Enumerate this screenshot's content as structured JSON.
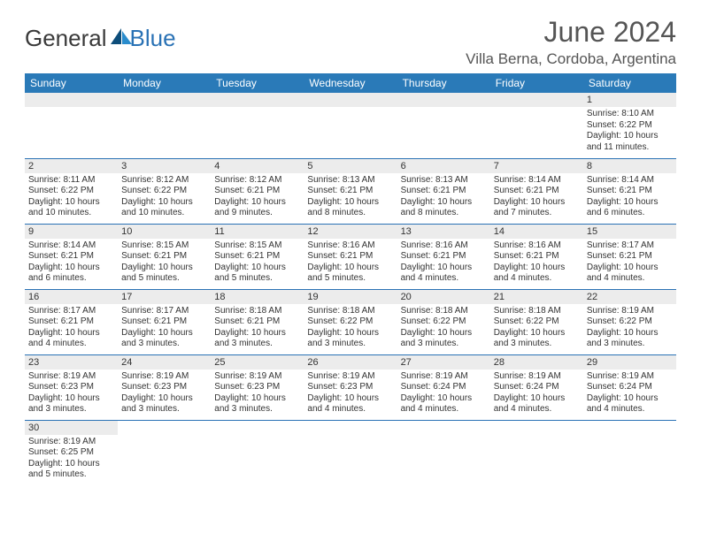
{
  "brand": {
    "general": "General",
    "blue": "Blue",
    "logo_color_dark": "#0d4d7a",
    "logo_color_light": "#2a8ccc"
  },
  "header": {
    "month_title": "June 2024",
    "location": "Villa Berna, Cordoba, Argentina"
  },
  "colors": {
    "header_bg": "#2a7ab8",
    "header_text": "#ffffff",
    "row_divider": "#2a72b5",
    "daynum_bg": "#ececec",
    "text": "#333333",
    "background": "#ffffff"
  },
  "daynames": [
    "Sunday",
    "Monday",
    "Tuesday",
    "Wednesday",
    "Thursday",
    "Friday",
    "Saturday"
  ],
  "weeks": [
    [
      {
        "empty": true
      },
      {
        "empty": true
      },
      {
        "empty": true
      },
      {
        "empty": true
      },
      {
        "empty": true
      },
      {
        "empty": true
      },
      {
        "day": "1",
        "sunrise": "Sunrise: 8:10 AM",
        "sunset": "Sunset: 6:22 PM",
        "daylight": "Daylight: 10 hours and 11 minutes."
      }
    ],
    [
      {
        "day": "2",
        "sunrise": "Sunrise: 8:11 AM",
        "sunset": "Sunset: 6:22 PM",
        "daylight": "Daylight: 10 hours and 10 minutes."
      },
      {
        "day": "3",
        "sunrise": "Sunrise: 8:12 AM",
        "sunset": "Sunset: 6:22 PM",
        "daylight": "Daylight: 10 hours and 10 minutes."
      },
      {
        "day": "4",
        "sunrise": "Sunrise: 8:12 AM",
        "sunset": "Sunset: 6:21 PM",
        "daylight": "Daylight: 10 hours and 9 minutes."
      },
      {
        "day": "5",
        "sunrise": "Sunrise: 8:13 AM",
        "sunset": "Sunset: 6:21 PM",
        "daylight": "Daylight: 10 hours and 8 minutes."
      },
      {
        "day": "6",
        "sunrise": "Sunrise: 8:13 AM",
        "sunset": "Sunset: 6:21 PM",
        "daylight": "Daylight: 10 hours and 8 minutes."
      },
      {
        "day": "7",
        "sunrise": "Sunrise: 8:14 AM",
        "sunset": "Sunset: 6:21 PM",
        "daylight": "Daylight: 10 hours and 7 minutes."
      },
      {
        "day": "8",
        "sunrise": "Sunrise: 8:14 AM",
        "sunset": "Sunset: 6:21 PM",
        "daylight": "Daylight: 10 hours and 6 minutes."
      }
    ],
    [
      {
        "day": "9",
        "sunrise": "Sunrise: 8:14 AM",
        "sunset": "Sunset: 6:21 PM",
        "daylight": "Daylight: 10 hours and 6 minutes."
      },
      {
        "day": "10",
        "sunrise": "Sunrise: 8:15 AM",
        "sunset": "Sunset: 6:21 PM",
        "daylight": "Daylight: 10 hours and 5 minutes."
      },
      {
        "day": "11",
        "sunrise": "Sunrise: 8:15 AM",
        "sunset": "Sunset: 6:21 PM",
        "daylight": "Daylight: 10 hours and 5 minutes."
      },
      {
        "day": "12",
        "sunrise": "Sunrise: 8:16 AM",
        "sunset": "Sunset: 6:21 PM",
        "daylight": "Daylight: 10 hours and 5 minutes."
      },
      {
        "day": "13",
        "sunrise": "Sunrise: 8:16 AM",
        "sunset": "Sunset: 6:21 PM",
        "daylight": "Daylight: 10 hours and 4 minutes."
      },
      {
        "day": "14",
        "sunrise": "Sunrise: 8:16 AM",
        "sunset": "Sunset: 6:21 PM",
        "daylight": "Daylight: 10 hours and 4 minutes."
      },
      {
        "day": "15",
        "sunrise": "Sunrise: 8:17 AM",
        "sunset": "Sunset: 6:21 PM",
        "daylight": "Daylight: 10 hours and 4 minutes."
      }
    ],
    [
      {
        "day": "16",
        "sunrise": "Sunrise: 8:17 AM",
        "sunset": "Sunset: 6:21 PM",
        "daylight": "Daylight: 10 hours and 4 minutes."
      },
      {
        "day": "17",
        "sunrise": "Sunrise: 8:17 AM",
        "sunset": "Sunset: 6:21 PM",
        "daylight": "Daylight: 10 hours and 3 minutes."
      },
      {
        "day": "18",
        "sunrise": "Sunrise: 8:18 AM",
        "sunset": "Sunset: 6:21 PM",
        "daylight": "Daylight: 10 hours and 3 minutes."
      },
      {
        "day": "19",
        "sunrise": "Sunrise: 8:18 AM",
        "sunset": "Sunset: 6:22 PM",
        "daylight": "Daylight: 10 hours and 3 minutes."
      },
      {
        "day": "20",
        "sunrise": "Sunrise: 8:18 AM",
        "sunset": "Sunset: 6:22 PM",
        "daylight": "Daylight: 10 hours and 3 minutes."
      },
      {
        "day": "21",
        "sunrise": "Sunrise: 8:18 AM",
        "sunset": "Sunset: 6:22 PM",
        "daylight": "Daylight: 10 hours and 3 minutes."
      },
      {
        "day": "22",
        "sunrise": "Sunrise: 8:19 AM",
        "sunset": "Sunset: 6:22 PM",
        "daylight": "Daylight: 10 hours and 3 minutes."
      }
    ],
    [
      {
        "day": "23",
        "sunrise": "Sunrise: 8:19 AM",
        "sunset": "Sunset: 6:23 PM",
        "daylight": "Daylight: 10 hours and 3 minutes."
      },
      {
        "day": "24",
        "sunrise": "Sunrise: 8:19 AM",
        "sunset": "Sunset: 6:23 PM",
        "daylight": "Daylight: 10 hours and 3 minutes."
      },
      {
        "day": "25",
        "sunrise": "Sunrise: 8:19 AM",
        "sunset": "Sunset: 6:23 PM",
        "daylight": "Daylight: 10 hours and 3 minutes."
      },
      {
        "day": "26",
        "sunrise": "Sunrise: 8:19 AM",
        "sunset": "Sunset: 6:23 PM",
        "daylight": "Daylight: 10 hours and 4 minutes."
      },
      {
        "day": "27",
        "sunrise": "Sunrise: 8:19 AM",
        "sunset": "Sunset: 6:24 PM",
        "daylight": "Daylight: 10 hours and 4 minutes."
      },
      {
        "day": "28",
        "sunrise": "Sunrise: 8:19 AM",
        "sunset": "Sunset: 6:24 PM",
        "daylight": "Daylight: 10 hours and 4 minutes."
      },
      {
        "day": "29",
        "sunrise": "Sunrise: 8:19 AM",
        "sunset": "Sunset: 6:24 PM",
        "daylight": "Daylight: 10 hours and 4 minutes."
      }
    ],
    [
      {
        "day": "30",
        "sunrise": "Sunrise: 8:19 AM",
        "sunset": "Sunset: 6:25 PM",
        "daylight": "Daylight: 10 hours and 5 minutes."
      },
      {
        "empty": true
      },
      {
        "empty": true
      },
      {
        "empty": true
      },
      {
        "empty": true
      },
      {
        "empty": true
      },
      {
        "empty": true
      }
    ]
  ]
}
